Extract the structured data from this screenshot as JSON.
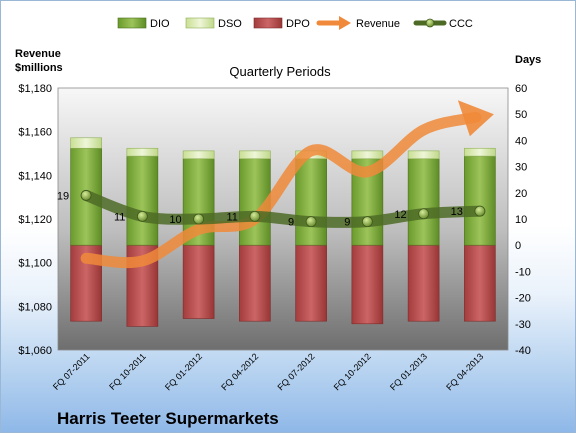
{
  "chart_data": {
    "type": "bar",
    "title": "Quarterly Periods",
    "company": "Harris Teeter Supermarkets",
    "left_axis_label": [
      "Revenue",
      "$millions"
    ],
    "right_axis_label": "Days",
    "categories": [
      "FQ 07-2011",
      "FQ 10-2011",
      "FQ 01-2012",
      "FQ 04-2012",
      "FQ 07-2012",
      "FQ 10-2012",
      "FQ 01-2013",
      "FQ 04-2013"
    ],
    "left_ylim": [
      1060,
      1180
    ],
    "left_ticks": [
      "$1,060",
      "$1,080",
      "$1,100",
      "$1,120",
      "$1,140",
      "$1,160",
      "$1,180"
    ],
    "right_ylim": [
      -40,
      60
    ],
    "right_ticks": [
      "-40",
      "-30",
      "-20",
      "-10",
      "0",
      "10",
      "20",
      "30",
      "40",
      "50",
      "60"
    ],
    "series": [
      {
        "name": "DIO",
        "kind": "stacked-bar",
        "axis": "right",
        "values": [
          37,
          34,
          33,
          33,
          33,
          33,
          33,
          34
        ]
      },
      {
        "name": "DSO",
        "kind": "stacked-bar",
        "axis": "right",
        "values": [
          4,
          3,
          3,
          3,
          3,
          3,
          3,
          3
        ]
      },
      {
        "name": "DPO",
        "kind": "negative-bar",
        "axis": "right",
        "values": [
          -29,
          -31,
          -28,
          -29,
          -29,
          -30,
          -29,
          -29
        ]
      },
      {
        "name": "Revenue",
        "kind": "arrow-line",
        "axis": "right",
        "values": [
          -5,
          -6,
          6,
          10,
          36,
          28,
          44,
          50
        ]
      },
      {
        "name": "CCC",
        "kind": "line",
        "axis": "right",
        "values": [
          19,
          11,
          10,
          11,
          9,
          9,
          12,
          13
        ]
      }
    ],
    "ccc_labels": [
      "19",
      "11",
      "10",
      "11",
      "9",
      "9",
      "12",
      "13"
    ],
    "colors": {
      "DIO": "#7aa83a",
      "DSO": "#dcebb4",
      "DPO": "#b84a4a",
      "Revenue": "#f08a3a",
      "CCC": "#5c7a2e"
    },
    "grid": false,
    "legend_position": "top"
  }
}
